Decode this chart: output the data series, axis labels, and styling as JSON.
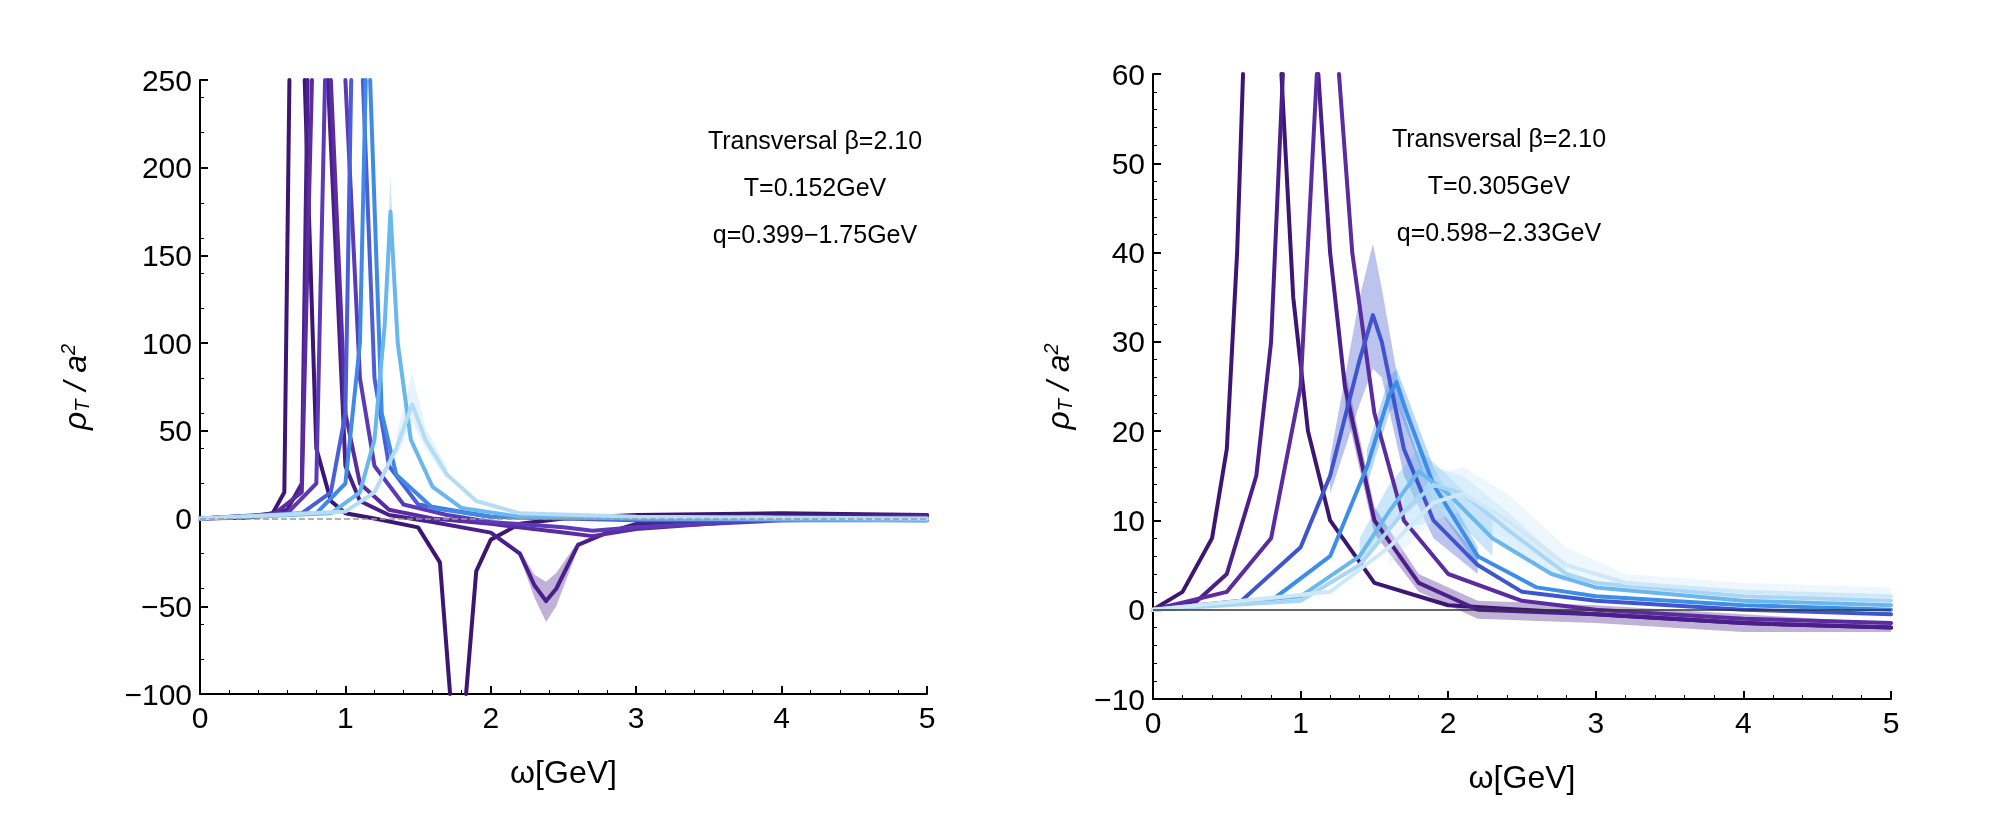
{
  "chart_data": [
    {
      "type": "line",
      "xlabel": "ω[GeV]",
      "ylabel": "ρ$_{T}$ / a$^{2}$",
      "xlim": [
        0,
        5
      ],
      "xticks": [
        0,
        1,
        2,
        3,
        4,
        5
      ],
      "ylim": [
        -100,
        250
      ],
      "yticks": [
        -100,
        -50,
        0,
        50,
        100,
        150,
        200,
        250
      ],
      "grid": false,
      "annotations": [
        "Transversal β=2.10",
        "T=0.152GeV",
        "q=0.399−1.75GeV"
      ],
      "ref_lines": [
        {
          "axis": "y",
          "value": 0,
          "color": "#999999",
          "line_style": "dashed"
        }
      ],
      "series": [
        {
          "color": "#3b1773",
          "x": [
            0,
            0.3,
            0.5,
            0.58,
            0.615,
            0.65,
            0.72,
            0.8,
            0.9,
            1.0,
            1.2,
            1.5,
            1.65,
            1.72,
            1.78,
            1.83,
            1.9,
            2.0,
            2.2,
            2.5,
            3,
            4,
            5
          ],
          "values": [
            0,
            0.5,
            3,
            15,
            250,
            null,
            250,
            40,
            10,
            3,
            0,
            -5,
            -25,
            -100,
            null,
            -100,
            -30,
            -12,
            -3,
            0,
            2,
            3,
            2
          ]
        },
        {
          "color": "#4a1f8c",
          "x": [
            0,
            0.4,
            0.6,
            0.7,
            0.74,
            0.8,
            0.88,
            1.0,
            1.1,
            1.3,
            1.6,
            2.0,
            2.2,
            2.3,
            2.38,
            2.45,
            2.6,
            2.8,
            3,
            4,
            5
          ],
          "values": [
            0,
            1,
            5,
            20,
            250,
            null,
            250,
            30,
            10,
            2,
            -2,
            -8,
            -20,
            -38,
            -47,
            -40,
            -15,
            -8,
            -3,
            1,
            2
          ],
          "lower": [
            null,
            null,
            null,
            null,
            null,
            null,
            null,
            null,
            null,
            null,
            null,
            null,
            -22,
            -45,
            -59,
            -50,
            -17,
            null,
            null,
            null,
            null
          ],
          "upper": [
            null,
            null,
            null,
            null,
            null,
            null,
            null,
            null,
            null,
            null,
            null,
            null,
            -18,
            -32,
            -36,
            -31,
            -13,
            null,
            null,
            null,
            null
          ]
        },
        {
          "color": "#5a2ca0",
          "x": [
            0,
            0.5,
            0.7,
            0.77,
            0.82,
            0.9,
            1.0,
            1.1,
            1.3,
            1.6,
            2.0,
            2.5,
            2.7,
            3,
            4,
            5
          ],
          "values": [
            0,
            2,
            15,
            250,
            null,
            250,
            60,
            20,
            5,
            0,
            -3,
            -8,
            -10,
            -6,
            0,
            1
          ]
        },
        {
          "color": "#5b3ab8",
          "x": [
            0,
            0.6,
            0.8,
            0.86,
            0.93,
            1.0,
            1.1,
            1.2,
            1.4,
            1.7,
            2,
            2.5,
            2.7,
            3,
            4,
            5
          ],
          "values": [
            0,
            3,
            20,
            250,
            null,
            250,
            80,
            30,
            8,
            2,
            -2,
            -5,
            -7,
            -5,
            -1,
            0
          ]
        },
        {
          "color": "#4b5ed8",
          "x": [
            0,
            0.7,
            0.9,
            1.0,
            1.04,
            1.08,
            1.12,
            1.2,
            1.3,
            1.5,
            2,
            3,
            5
          ],
          "values": [
            0,
            3,
            15,
            60,
            250,
            null,
            250,
            80,
            30,
            8,
            1,
            -1,
            -1
          ]
        },
        {
          "color": "#3f8ae6",
          "x": [
            0,
            0.8,
            1.0,
            1.1,
            1.14,
            1.155,
            1.17,
            1.25,
            1.35,
            1.6,
            2,
            3,
            5
          ],
          "values": [
            0,
            3,
            20,
            100,
            250,
            null,
            250,
            60,
            25,
            6,
            1,
            0,
            -1
          ]
        },
        {
          "color": "#6ab7ef",
          "x": [
            0,
            0.9,
            1.1,
            1.2,
            1.27,
            1.31,
            1.36,
            1.45,
            1.6,
            1.8,
            2.2,
            3,
            5
          ],
          "values": [
            0,
            3,
            15,
            45,
            110,
            175,
            100,
            45,
            18,
            6,
            1,
            0,
            -1
          ],
          "lower": [
            null,
            null,
            null,
            null,
            105,
            165,
            95,
            null,
            null,
            null,
            null,
            null,
            null
          ],
          "upper": [
            null,
            null,
            null,
            null,
            118,
            195,
            108,
            null,
            null,
            null,
            null,
            null,
            null
          ]
        },
        {
          "color": "#b4dcf5",
          "x": [
            0,
            1.0,
            1.2,
            1.35,
            1.46,
            1.55,
            1.7,
            1.9,
            2.2,
            3,
            5
          ],
          "values": [
            0,
            4,
            15,
            40,
            65,
            45,
            25,
            10,
            3,
            1,
            0
          ],
          "lower": [
            null,
            null,
            null,
            35,
            55,
            40,
            22,
            null,
            null,
            null,
            null
          ],
          "upper": [
            null,
            null,
            null,
            47,
            83,
            52,
            29,
            null,
            null,
            null,
            null
          ]
        }
      ]
    },
    {
      "type": "line",
      "xlabel": "ω[GeV]",
      "ylabel": "ρ$_{T}$ / a$^{2}$",
      "xlim": [
        0,
        5
      ],
      "xticks": [
        0,
        1,
        2,
        3,
        4,
        5
      ],
      "ylim": [
        -10,
        60
      ],
      "yticks": [
        -10,
        0,
        10,
        20,
        30,
        40,
        50,
        60
      ],
      "grid": false,
      "annotations": [
        "Transversal β=2.10",
        "T=0.305GeV",
        "q=0.598−2.33GeV"
      ],
      "ref_lines": [
        {
          "axis": "y",
          "value": 0,
          "color": "#333333",
          "line_style": "solid"
        }
      ],
      "series": [
        {
          "color": "#3b1773",
          "x": [
            0,
            0.2,
            0.4,
            0.5,
            0.57,
            0.61,
            0.75,
            0.87,
            0.95,
            1.05,
            1.2,
            1.5,
            2,
            3,
            4,
            5
          ],
          "values": [
            0,
            2,
            8,
            18,
            40,
            60,
            null,
            60,
            35,
            20,
            10,
            3,
            0.5,
            -0.5,
            -1.5,
            -2
          ]
        },
        {
          "color": "#4a1f8c",
          "x": [
            0,
            0.3,
            0.5,
            0.7,
            0.8,
            0.88,
            1.0,
            1.12,
            1.2,
            1.3,
            1.5,
            1.8,
            2.2,
            3,
            4,
            5
          ],
          "values": [
            0,
            1,
            4,
            15,
            30,
            60,
            null,
            60,
            40,
            25,
            10,
            3,
            0,
            -0.5,
            -1.5,
            -2
          ],
          "lower": [
            null,
            null,
            null,
            null,
            null,
            null,
            null,
            null,
            null,
            23,
            8.5,
            2,
            -1,
            -1.5,
            -2.5,
            -2.5
          ],
          "upper": [
            null,
            null,
            null,
            null,
            null,
            null,
            null,
            null,
            null,
            27,
            11.5,
            4,
            1,
            0.5,
            -0.5,
            -1.5
          ]
        },
        {
          "color": "#5a2ca0",
          "x": [
            0,
            0.5,
            0.8,
            1.0,
            1.11,
            1.18,
            1.26,
            1.35,
            1.5,
            1.7,
            2,
            2.5,
            3,
            4,
            5
          ],
          "values": [
            0,
            2,
            8,
            25,
            60,
            null,
            60,
            40,
            22,
            10,
            4,
            1,
            0,
            -1,
            -1.5
          ]
        },
        {
          "color": "#3f55cf",
          "x": [
            0,
            0.6,
            1.0,
            1.2,
            1.4,
            1.49,
            1.55,
            1.7,
            1.9,
            2.2,
            2.5,
            3,
            4,
            5
          ],
          "values": [
            0,
            1,
            7,
            15,
            28,
            33,
            30,
            18,
            10,
            5,
            2,
            1,
            0,
            -0.5
          ],
          "lower": [
            null,
            null,
            null,
            13,
            23,
            27,
            26,
            15,
            8,
            4,
            null,
            null,
            null,
            null
          ],
          "upper": [
            null,
            null,
            null,
            17,
            35,
            41,
            36,
            22,
            12,
            6,
            null,
            null,
            null,
            null
          ]
        },
        {
          "color": "#3d8ee8",
          "x": [
            0,
            0.8,
            1.2,
            1.45,
            1.6,
            1.65,
            1.72,
            1.9,
            2.2,
            2.6,
            3,
            4,
            5
          ],
          "values": [
            0,
            1,
            6,
            16,
            24,
            25.5,
            22,
            14,
            6,
            2.5,
            1.5,
            0.5,
            0
          ],
          "lower": [
            null,
            null,
            null,
            14,
            22,
            23,
            20,
            12,
            5,
            null,
            null,
            null,
            null
          ],
          "upper": [
            null,
            null,
            null,
            18,
            26,
            27,
            24,
            16,
            7,
            null,
            null,
            null,
            null
          ]
        },
        {
          "color": "#6ab7ef",
          "x": [
            0,
            1.0,
            1.4,
            1.6,
            1.8,
            2.0,
            2.3,
            2.7,
            3,
            4,
            5
          ],
          "values": [
            0,
            1.5,
            6,
            11,
            15.5,
            13,
            8,
            4,
            2.5,
            1,
            0.5
          ],
          "lower": [
            null,
            null,
            5,
            9,
            12,
            11,
            6,
            null,
            null,
            null,
            null
          ],
          "upper": [
            null,
            null,
            8,
            14,
            18,
            15,
            10,
            null,
            null,
            null,
            null
          ]
        },
        {
          "color": "#a9d6f5",
          "x": [
            0,
            1.0,
            1.4,
            1.7,
            1.9,
            2.1,
            2.4,
            2.8,
            3,
            4,
            5
          ],
          "values": [
            0,
            1,
            5,
            11,
            14,
            13,
            9,
            4,
            3,
            1.5,
            1
          ],
          "lower": [
            null,
            null,
            null,
            9,
            10,
            11,
            7,
            3,
            null,
            null,
            null
          ],
          "upper": [
            null,
            null,
            null,
            13,
            16,
            15,
            11,
            5,
            null,
            null,
            null
          ]
        },
        {
          "color": "#cfe8f8",
          "x": [
            0,
            1.2,
            1.6,
            1.9,
            2.1,
            2.4,
            2.8,
            3.2,
            4,
            5
          ],
          "values": [
            0,
            2,
            7,
            12,
            13,
            10,
            5,
            3,
            2,
            1.5
          ],
          "lower": [
            null,
            null,
            5,
            10,
            11,
            8,
            4,
            2,
            1,
            0.5
          ],
          "upper": [
            null,
            null,
            9,
            15,
            16,
            13,
            7,
            4,
            3,
            2.5
          ]
        }
      ]
    }
  ]
}
